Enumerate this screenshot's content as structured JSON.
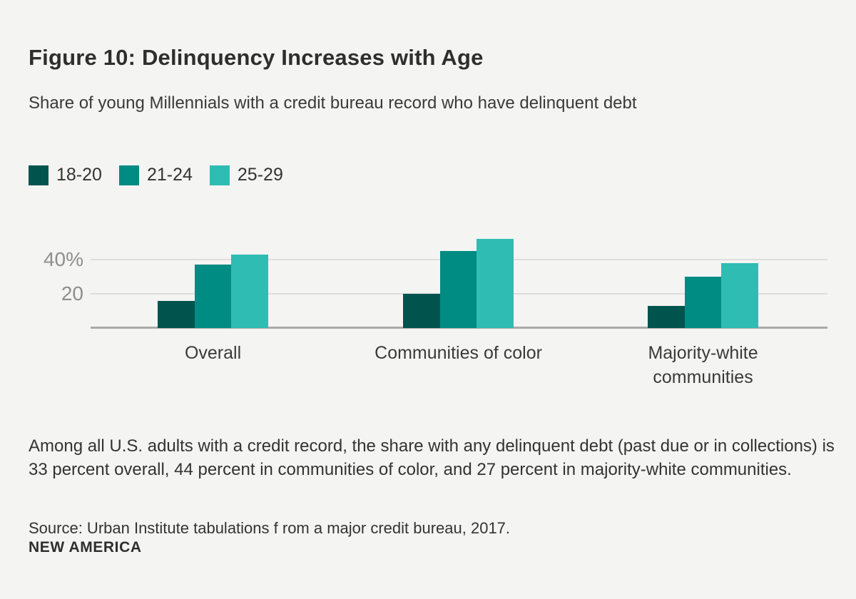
{
  "page": {
    "background": "#f4f4f3"
  },
  "header": {
    "title": "Figure 10: Delinquency Increases with Age",
    "subtitle": "Share of young Millennials with a credit bureau record who have delinquent debt"
  },
  "chart_data": {
    "type": "bar",
    "categories": [
      "Overall",
      "Communities of color",
      "Majority-white communities"
    ],
    "series": [
      {
        "name": "18-20",
        "color": "#00544e",
        "values": [
          16,
          20,
          13
        ]
      },
      {
        "name": "21-24",
        "color": "#008b83",
        "values": [
          37,
          45,
          30
        ]
      },
      {
        "name": "25-29",
        "color": "#2fbcb3",
        "values": [
          43,
          52,
          38
        ]
      }
    ],
    "y_ticks": [
      {
        "value": 20,
        "label": "20"
      },
      {
        "value": 40,
        "label": "40%"
      }
    ],
    "ylim": [
      0,
      55
    ],
    "grid": "horizontal",
    "legend_position": "top-left",
    "gridline_color": "#dddddd",
    "baseline_color": "#a9a9a9",
    "tick_label_color": "#8e8e8e"
  },
  "footer": {
    "caption": "Among all U.S. adults with a credit record, the share with any delinquent debt (past due or in collections) is 33 percent overall, 44 percent in communities of color, and 27 percent in majority-white communities.",
    "source": "Source: Urban Institute tabulations f rom a major credit bureau, 2017.",
    "brand": "NEW AMERICA"
  }
}
